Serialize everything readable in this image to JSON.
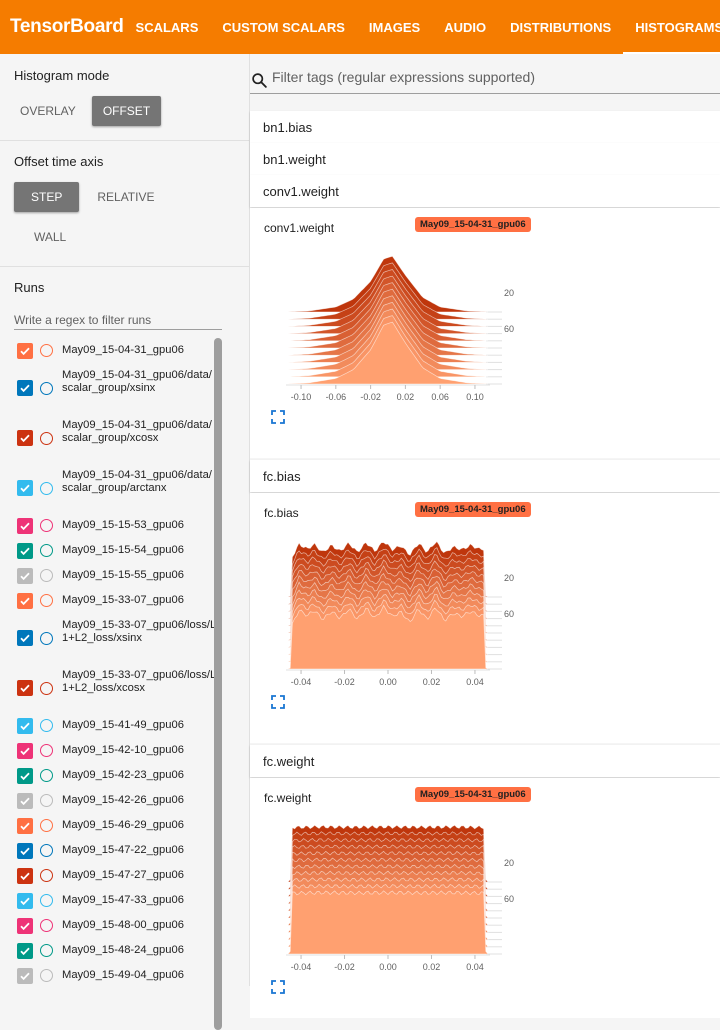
{
  "header": {
    "brand": "TensorBoard",
    "tabs": [
      {
        "label": "SCALARS",
        "active": false
      },
      {
        "label": "CUSTOM SCALARS",
        "active": false
      },
      {
        "label": "IMAGES",
        "active": false
      },
      {
        "label": "AUDIO",
        "active": false
      },
      {
        "label": "DISTRIBUTIONS",
        "active": false
      },
      {
        "label": "HISTOGRAMS",
        "active": true
      }
    ]
  },
  "sidebar": {
    "histogram_mode": {
      "title": "Histogram mode",
      "overlay": "OVERLAY",
      "offset": "OFFSET",
      "selected": "OFFSET"
    },
    "offset_axis": {
      "title": "Offset time axis",
      "step": "STEP",
      "relative": "RELATIVE",
      "wall": "WALL",
      "selected": "STEP"
    },
    "runs": {
      "title": "Runs",
      "placeholder": "Write a regex to filter runs",
      "items": [
        {
          "label": "May09_15-04-31_gpu06",
          "color": "#ff7043",
          "checked": true
        },
        {
          "label": "May09_15-04-31_gpu06/data/scalar_group/xsinx",
          "color": "#0077bb",
          "checked": true
        },
        {
          "label": "May09_15-04-31_gpu06/data/scalar_group/xcosx",
          "color": "#cc3311",
          "checked": true
        },
        {
          "label": "May09_15-04-31_gpu06/data/scalar_group/arctanx",
          "color": "#33bbee",
          "checked": true
        },
        {
          "label": "May09_15-15-53_gpu06",
          "color": "#ee3377",
          "checked": true
        },
        {
          "label": "May09_15-15-54_gpu06",
          "color": "#009988",
          "checked": true
        },
        {
          "label": "May09_15-15-55_gpu06",
          "color": "#bbbbbb",
          "checked": true
        },
        {
          "label": "May09_15-33-07_gpu06",
          "color": "#ff7043",
          "checked": true
        },
        {
          "label": "May09_15-33-07_gpu06/loss/L1+L2_loss/xsinx",
          "color": "#0077bb",
          "checked": true
        },
        {
          "label": "May09_15-33-07_gpu06/loss/L1+L2_loss/xcosx",
          "color": "#cc3311",
          "checked": true
        },
        {
          "label": "May09_15-41-49_gpu06",
          "color": "#33bbee",
          "checked": true
        },
        {
          "label": "May09_15-42-10_gpu06",
          "color": "#ee3377",
          "checked": true
        },
        {
          "label": "May09_15-42-23_gpu06",
          "color": "#009988",
          "checked": true
        },
        {
          "label": "May09_15-42-26_gpu06",
          "color": "#bbbbbb",
          "checked": true
        },
        {
          "label": "May09_15-46-29_gpu06",
          "color": "#ff7043",
          "checked": true
        },
        {
          "label": "May09_15-47-22_gpu06",
          "color": "#0077bb",
          "checked": true
        },
        {
          "label": "May09_15-47-27_gpu06",
          "color": "#cc3311",
          "checked": true
        },
        {
          "label": "May09_15-47-33_gpu06",
          "color": "#33bbee",
          "checked": true
        },
        {
          "label": "May09_15-48-00_gpu06",
          "color": "#ee3377",
          "checked": true
        },
        {
          "label": "May09_15-48-24_gpu06",
          "color": "#009988",
          "checked": true
        },
        {
          "label": "May09_15-49-04_gpu06",
          "color": "#bbbbbb",
          "checked": true
        }
      ]
    }
  },
  "main": {
    "filter_placeholder": "Filter tags (regular expressions supported)",
    "tags": [
      {
        "name": "bn1.bias"
      },
      {
        "name": "bn1.weight"
      },
      {
        "name": "conv1.weight"
      },
      {
        "name": "fc.bias"
      },
      {
        "name": "fc.weight"
      }
    ],
    "cards": [
      {
        "title": "conv1.weight",
        "run": "May09_15-04-31_gpu06"
      },
      {
        "title": "fc.bias",
        "run": "May09_15-04-31_gpu06"
      },
      {
        "title": "fc.weight",
        "run": "May09_15-04-31_gpu06"
      }
    ]
  },
  "chart_data": [
    {
      "type": "area",
      "title": "conv1.weight",
      "shape": "gaussian",
      "x_ticks": [
        "-0.10",
        "-0.06",
        "-0.02",
        "0.02",
        "0.06",
        "0.10"
      ],
      "x_tick_values": [
        -0.1,
        -0.06,
        -0.02,
        0.02,
        0.06,
        0.1
      ],
      "xlim": [
        -0.115,
        0.115
      ],
      "step_ticks": [
        "20",
        "60"
      ],
      "step_tick_values": [
        20,
        60
      ],
      "color_range": [
        "#bf360c",
        "#ffa070"
      ],
      "slices": 11,
      "series": [
        {
          "values": [
            [
              -0.115,
              0
            ],
            [
              -0.09,
              0.02
            ],
            [
              -0.06,
              0.09
            ],
            [
              -0.04,
              0.23
            ],
            [
              -0.02,
              0.55
            ],
            [
              -0.005,
              0.95
            ],
            [
              0.005,
              1.0
            ],
            [
              0.02,
              0.66
            ],
            [
              0.04,
              0.26
            ],
            [
              0.06,
              0.09
            ],
            [
              0.09,
              0.02
            ],
            [
              0.115,
              0
            ]
          ]
        }
      ]
    },
    {
      "type": "area",
      "title": "fc.bias",
      "shape": "uniform-jagged",
      "x_ticks": [
        "-0.04",
        "-0.02",
        "0.00",
        "0.02",
        "0.04"
      ],
      "x_tick_values": [
        -0.04,
        -0.02,
        0.0,
        0.02,
        0.04
      ],
      "xlim": [
        -0.046,
        0.046
      ],
      "step_ticks": [
        "20",
        "60"
      ],
      "step_tick_values": [
        20,
        60
      ],
      "color_range": [
        "#bf360c",
        "#ffa070"
      ],
      "slices": 11,
      "series": [
        {
          "values": [
            [
              -0.045,
              0
            ],
            [
              -0.044,
              0.72
            ],
            [
              -0.041,
              0.95
            ],
            [
              -0.037,
              0.86
            ],
            [
              -0.034,
              0.95
            ],
            [
              -0.03,
              0.8
            ],
            [
              -0.026,
              0.93
            ],
            [
              -0.022,
              0.82
            ],
            [
              -0.018,
              0.97
            ],
            [
              -0.014,
              0.8
            ],
            [
              -0.01,
              0.98
            ],
            [
              -0.006,
              0.82
            ],
            [
              -0.002,
              1.0
            ],
            [
              0.002,
              0.85
            ],
            [
              0.006,
              0.92
            ],
            [
              0.01,
              0.75
            ],
            [
              0.014,
              0.97
            ],
            [
              0.018,
              0.8
            ],
            [
              0.022,
              1.0
            ],
            [
              0.026,
              0.78
            ],
            [
              0.03,
              0.9
            ],
            [
              0.034,
              0.85
            ],
            [
              0.038,
              0.93
            ],
            [
              0.042,
              0.86
            ],
            [
              0.044,
              0.86
            ],
            [
              0.045,
              0
            ]
          ]
        }
      ]
    },
    {
      "type": "area",
      "title": "fc.weight",
      "shape": "uniform",
      "x_ticks": [
        "-0.04",
        "-0.02",
        "0.00",
        "0.02",
        "0.04"
      ],
      "x_tick_values": [
        -0.04,
        -0.02,
        0.0,
        0.02,
        0.04
      ],
      "xlim": [
        -0.046,
        0.046
      ],
      "step_ticks": [
        "20",
        "60"
      ],
      "step_tick_values": [
        20,
        60
      ],
      "color_range": [
        "#bf360c",
        "#ffa070"
      ],
      "slices": 11,
      "series": [
        {
          "values": [
            [
              -0.045,
              0
            ],
            [
              -0.0445,
              0.98
            ],
            [
              -0.03,
              0.99
            ],
            [
              -0.015,
              0.985
            ],
            [
              0.0,
              0.99
            ],
            [
              0.015,
              0.985
            ],
            [
              0.03,
              0.99
            ],
            [
              0.0445,
              0.98
            ],
            [
              0.045,
              0
            ]
          ]
        }
      ]
    }
  ]
}
